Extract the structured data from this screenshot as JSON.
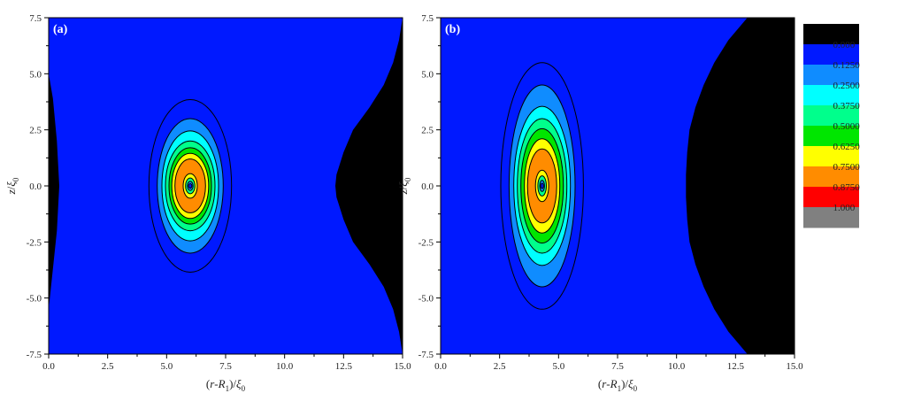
{
  "chart_data": {
    "type": "heatmap",
    "colorbar": {
      "levels": [
        "0.000",
        "0.1250",
        "0.2500",
        "0.3750",
        "0.5000",
        "0.6250",
        "0.7500",
        "0.8750",
        "1.000"
      ],
      "colors": [
        "#000000",
        "#0019FF",
        "#0F8CFF",
        "#00FFFF",
        "#00FF8C",
        "#00E600",
        "#FFFF00",
        "#FF8C00",
        "#FF0000",
        "#808080"
      ]
    },
    "panels": [
      {
        "label": "(a)",
        "xlabel_parts": [
          "(",
          "r",
          "-",
          "R",
          "1",
          ")/",
          "ξ",
          "0"
        ],
        "ylabel_parts": [
          "z",
          "/",
          "ξ",
          "0"
        ],
        "xlim": [
          0.0,
          15.0
        ],
        "ylim": [
          -7.5,
          7.5
        ],
        "xticks": [
          "0.0",
          "2.5",
          "5.0",
          "7.5",
          "10.0",
          "12.5",
          "15.0"
        ],
        "yticks": [
          "7.5",
          "5.0",
          "2.5",
          "0.0",
          "-2.5",
          "-5.0",
          "-7.5"
        ],
        "vortex": {
          "x": 6.0,
          "y": 0.0
        },
        "contours": [
          {
            "level": 0.125,
            "rx": 1.75,
            "ry": 3.85
          },
          {
            "level": 0.25,
            "rx": 1.4,
            "ry": 3.0
          },
          {
            "level": 0.375,
            "rx": 1.2,
            "ry": 2.45
          },
          {
            "level": 0.5,
            "rx": 1.05,
            "ry": 2.0
          },
          {
            "level": 0.625,
            "rx": 0.9,
            "ry": 1.7
          },
          {
            "level": 0.75,
            "rx": 0.78,
            "ry": 1.45
          },
          {
            "level": 0.875,
            "rx": 0.65,
            "ry": 1.2
          },
          {
            "level": 0.75,
            "rx": 0.3,
            "ry": 0.55
          },
          {
            "level": 0.5,
            "rx": 0.2,
            "ry": 0.35
          },
          {
            "level": 0.25,
            "rx": 0.12,
            "ry": 0.2
          },
          {
            "level": 0.125,
            "rx": 0.07,
            "ry": 0.1
          }
        ],
        "left_boundary": [
          {
            "z": 7.5,
            "r": 0.0
          },
          {
            "z": 5.0,
            "r": 0.0
          },
          {
            "z": 3.9,
            "r": 0.18
          },
          {
            "z": 2.0,
            "r": 0.35
          },
          {
            "z": 0.0,
            "r": 0.45
          },
          {
            "z": -2.0,
            "r": 0.35
          },
          {
            "z": -3.7,
            "r": 0.18
          },
          {
            "z": -5.5,
            "r": 0.0
          },
          {
            "z": -7.5,
            "r": 0.0
          }
        ],
        "right_boundary": [
          {
            "z": 7.5,
            "r": 15.0
          },
          {
            "z": 6.5,
            "r": 14.85
          },
          {
            "z": 5.5,
            "r": 14.6
          },
          {
            "z": 4.5,
            "r": 14.2
          },
          {
            "z": 3.5,
            "r": 13.6
          },
          {
            "z": 2.5,
            "r": 12.9
          },
          {
            "z": 1.5,
            "r": 12.5
          },
          {
            "z": 0.5,
            "r": 12.2
          },
          {
            "z": 0.0,
            "r": 12.15
          },
          {
            "z": -0.5,
            "r": 12.2
          },
          {
            "z": -1.5,
            "r": 12.5
          },
          {
            "z": -2.5,
            "r": 12.9
          },
          {
            "z": -3.5,
            "r": 13.6
          },
          {
            "z": -4.5,
            "r": 14.2
          },
          {
            "z": -5.5,
            "r": 14.6
          },
          {
            "z": -6.5,
            "r": 14.85
          },
          {
            "z": -7.5,
            "r": 15.0
          }
        ]
      },
      {
        "label": "(b)",
        "xlabel_parts": [
          "(",
          "r",
          "-",
          "R",
          "1",
          ")/",
          "ξ",
          "0"
        ],
        "ylabel_parts": [
          "z",
          "/",
          "ξ",
          "0"
        ],
        "xlim": [
          0.0,
          15.0
        ],
        "ylim": [
          -7.5,
          7.5
        ],
        "xticks": [
          "0.0",
          "2.5",
          "5.0",
          "7.5",
          "10.0",
          "12.5",
          "15.0"
        ],
        "yticks": [
          "7.5",
          "5.0",
          "2.5",
          "0.0",
          "-2.5",
          "-5.0",
          "-7.5"
        ],
        "vortex": {
          "x": 4.3,
          "y": 0.0
        },
        "contours": [
          {
            "level": 0.125,
            "rx": 1.75,
            "ry": 5.5
          },
          {
            "level": 0.25,
            "rx": 1.4,
            "ry": 4.5
          },
          {
            "level": 0.375,
            "rx": 1.2,
            "ry": 3.55
          },
          {
            "level": 0.5,
            "rx": 1.05,
            "ry": 3.0
          },
          {
            "level": 0.625,
            "rx": 0.9,
            "ry": 2.55
          },
          {
            "level": 0.75,
            "rx": 0.75,
            "ry": 2.1
          },
          {
            "level": 0.875,
            "rx": 0.62,
            "ry": 1.65
          },
          {
            "level": 0.75,
            "rx": 0.28,
            "ry": 0.7
          },
          {
            "level": 0.5,
            "rx": 0.18,
            "ry": 0.45
          },
          {
            "level": 0.25,
            "rx": 0.1,
            "ry": 0.25
          },
          {
            "level": 0.125,
            "rx": 0.06,
            "ry": 0.12
          }
        ],
        "left_boundary": [],
        "right_boundary": [
          {
            "z": 7.5,
            "r": 13.0
          },
          {
            "z": 6.5,
            "r": 12.2
          },
          {
            "z": 5.5,
            "r": 11.6
          },
          {
            "z": 4.5,
            "r": 11.15
          },
          {
            "z": 3.5,
            "r": 10.8
          },
          {
            "z": 2.5,
            "r": 10.55
          },
          {
            "z": 1.5,
            "r": 10.45
          },
          {
            "z": 0.5,
            "r": 10.4
          },
          {
            "z": -0.5,
            "r": 10.4
          },
          {
            "z": -1.5,
            "r": 10.45
          },
          {
            "z": -2.5,
            "r": 10.55
          },
          {
            "z": -3.5,
            "r": 10.8
          },
          {
            "z": -4.5,
            "r": 11.15
          },
          {
            "z": -5.5,
            "r": 11.6
          },
          {
            "z": -6.5,
            "r": 12.2
          },
          {
            "z": -7.5,
            "r": 13.0
          }
        ]
      }
    ]
  }
}
